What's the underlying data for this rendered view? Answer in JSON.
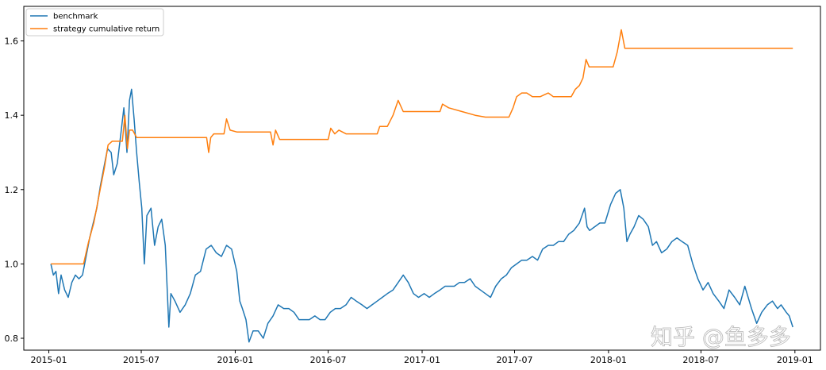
{
  "chart_data": {
    "type": "line",
    "title": "",
    "xlabel": "",
    "ylabel": "",
    "x_ticks": [
      "2015-01",
      "2015-07",
      "2016-01",
      "2016-07",
      "2017-01",
      "2017-07",
      "2018-01",
      "2018-07",
      "2019-01"
    ],
    "y_ticks": [
      "0.8",
      "1.0",
      "1.2",
      "1.4",
      "1.6"
    ],
    "xlim": [
      "2014-11-13",
      "2019-02-20"
    ],
    "ylim": [
      0.768,
      1.693
    ],
    "grid": false,
    "legend_position": "upper-left",
    "series": [
      {
        "name": "benchmark",
        "color": "#1f77b4",
        "points": [
          [
            "2015-01-05",
            1.0
          ],
          [
            "2015-01-10",
            0.97
          ],
          [
            "2015-01-15",
            0.98
          ],
          [
            "2015-01-20",
            0.92
          ],
          [
            "2015-01-25",
            0.97
          ],
          [
            "2015-02-01",
            0.93
          ],
          [
            "2015-02-08",
            0.91
          ],
          [
            "2015-02-15",
            0.95
          ],
          [
            "2015-02-22",
            0.97
          ],
          [
            "2015-03-01",
            0.96
          ],
          [
            "2015-03-08",
            0.97
          ],
          [
            "2015-03-15",
            1.02
          ],
          [
            "2015-03-22",
            1.07
          ],
          [
            "2015-03-29",
            1.11
          ],
          [
            "2015-04-05",
            1.15
          ],
          [
            "2015-04-12",
            1.21
          ],
          [
            "2015-04-19",
            1.26
          ],
          [
            "2015-04-26",
            1.31
          ],
          [
            "2015-05-03",
            1.3
          ],
          [
            "2015-05-08",
            1.24
          ],
          [
            "2015-05-15",
            1.27
          ],
          [
            "2015-05-22",
            1.35
          ],
          [
            "2015-05-28",
            1.42
          ],
          [
            "2015-06-03",
            1.3
          ],
          [
            "2015-06-08",
            1.44
          ],
          [
            "2015-06-12",
            1.47
          ],
          [
            "2015-06-17",
            1.39
          ],
          [
            "2015-06-22",
            1.3
          ],
          [
            "2015-06-27",
            1.22
          ],
          [
            "2015-07-02",
            1.15
          ],
          [
            "2015-07-07",
            1.0
          ],
          [
            "2015-07-12",
            1.13
          ],
          [
            "2015-07-20",
            1.15
          ],
          [
            "2015-07-27",
            1.05
          ],
          [
            "2015-08-03",
            1.1
          ],
          [
            "2015-08-10",
            1.12
          ],
          [
            "2015-08-17",
            1.05
          ],
          [
            "2015-08-24",
            0.83
          ],
          [
            "2015-08-28",
            0.92
          ],
          [
            "2015-09-05",
            0.9
          ],
          [
            "2015-09-15",
            0.87
          ],
          [
            "2015-09-25",
            0.89
          ],
          [
            "2015-10-05",
            0.92
          ],
          [
            "2015-10-15",
            0.97
          ],
          [
            "2015-10-25",
            0.98
          ],
          [
            "2015-11-05",
            1.04
          ],
          [
            "2015-11-15",
            1.05
          ],
          [
            "2015-11-25",
            1.03
          ],
          [
            "2015-12-05",
            1.02
          ],
          [
            "2015-12-15",
            1.05
          ],
          [
            "2015-12-25",
            1.04
          ],
          [
            "2016-01-04",
            0.98
          ],
          [
            "2016-01-10",
            0.9
          ],
          [
            "2016-01-15",
            0.88
          ],
          [
            "2016-01-22",
            0.85
          ],
          [
            "2016-01-28",
            0.79
          ],
          [
            "2016-02-05",
            0.82
          ],
          [
            "2016-02-15",
            0.82
          ],
          [
            "2016-02-25",
            0.8
          ],
          [
            "2016-03-05",
            0.84
          ],
          [
            "2016-03-15",
            0.86
          ],
          [
            "2016-03-25",
            0.89
          ],
          [
            "2016-04-05",
            0.88
          ],
          [
            "2016-04-15",
            0.88
          ],
          [
            "2016-04-25",
            0.87
          ],
          [
            "2016-05-05",
            0.85
          ],
          [
            "2016-05-15",
            0.85
          ],
          [
            "2016-05-25",
            0.85
          ],
          [
            "2016-06-05",
            0.86
          ],
          [
            "2016-06-15",
            0.85
          ],
          [
            "2016-06-25",
            0.85
          ],
          [
            "2016-07-05",
            0.87
          ],
          [
            "2016-07-15",
            0.88
          ],
          [
            "2016-07-25",
            0.88
          ],
          [
            "2016-08-05",
            0.89
          ],
          [
            "2016-08-15",
            0.91
          ],
          [
            "2016-08-25",
            0.9
          ],
          [
            "2016-09-05",
            0.89
          ],
          [
            "2016-09-15",
            0.88
          ],
          [
            "2016-09-25",
            0.89
          ],
          [
            "2016-10-05",
            0.9
          ],
          [
            "2016-10-15",
            0.91
          ],
          [
            "2016-10-25",
            0.92
          ],
          [
            "2016-11-05",
            0.93
          ],
          [
            "2016-11-15",
            0.95
          ],
          [
            "2016-11-25",
            0.97
          ],
          [
            "2016-12-05",
            0.95
          ],
          [
            "2016-12-15",
            0.92
          ],
          [
            "2016-12-25",
            0.91
          ],
          [
            "2017-01-05",
            0.92
          ],
          [
            "2017-01-15",
            0.91
          ],
          [
            "2017-01-25",
            0.92
          ],
          [
            "2017-02-05",
            0.93
          ],
          [
            "2017-02-15",
            0.94
          ],
          [
            "2017-02-25",
            0.94
          ],
          [
            "2017-03-05",
            0.94
          ],
          [
            "2017-03-15",
            0.95
          ],
          [
            "2017-03-25",
            0.95
          ],
          [
            "2017-04-05",
            0.96
          ],
          [
            "2017-04-15",
            0.94
          ],
          [
            "2017-04-25",
            0.93
          ],
          [
            "2017-05-05",
            0.92
          ],
          [
            "2017-05-15",
            0.91
          ],
          [
            "2017-05-25",
            0.94
          ],
          [
            "2017-06-05",
            0.96
          ],
          [
            "2017-06-15",
            0.97
          ],
          [
            "2017-06-25",
            0.99
          ],
          [
            "2017-07-05",
            1.0
          ],
          [
            "2017-07-15",
            1.01
          ],
          [
            "2017-07-25",
            1.01
          ],
          [
            "2017-08-05",
            1.02
          ],
          [
            "2017-08-15",
            1.01
          ],
          [
            "2017-08-25",
            1.04
          ],
          [
            "2017-09-05",
            1.05
          ],
          [
            "2017-09-15",
            1.05
          ],
          [
            "2017-09-25",
            1.06
          ],
          [
            "2017-10-05",
            1.06
          ],
          [
            "2017-10-15",
            1.08
          ],
          [
            "2017-10-25",
            1.09
          ],
          [
            "2017-11-05",
            1.11
          ],
          [
            "2017-11-15",
            1.15
          ],
          [
            "2017-11-20",
            1.1
          ],
          [
            "2017-11-25",
            1.09
          ],
          [
            "2017-12-05",
            1.1
          ],
          [
            "2017-12-15",
            1.11
          ],
          [
            "2017-12-25",
            1.11
          ],
          [
            "2018-01-05",
            1.16
          ],
          [
            "2018-01-15",
            1.19
          ],
          [
            "2018-01-24",
            1.2
          ],
          [
            "2018-01-31",
            1.15
          ],
          [
            "2018-02-06",
            1.06
          ],
          [
            "2018-02-12",
            1.08
          ],
          [
            "2018-02-20",
            1.1
          ],
          [
            "2018-03-01",
            1.13
          ],
          [
            "2018-03-10",
            1.12
          ],
          [
            "2018-03-20",
            1.1
          ],
          [
            "2018-03-28",
            1.05
          ],
          [
            "2018-04-05",
            1.06
          ],
          [
            "2018-04-15",
            1.03
          ],
          [
            "2018-04-25",
            1.04
          ],
          [
            "2018-05-05",
            1.06
          ],
          [
            "2018-05-15",
            1.07
          ],
          [
            "2018-05-25",
            1.06
          ],
          [
            "2018-06-05",
            1.05
          ],
          [
            "2018-06-15",
            1.0
          ],
          [
            "2018-06-25",
            0.96
          ],
          [
            "2018-07-05",
            0.93
          ],
          [
            "2018-07-15",
            0.95
          ],
          [
            "2018-07-25",
            0.92
          ],
          [
            "2018-08-05",
            0.9
          ],
          [
            "2018-08-15",
            0.88
          ],
          [
            "2018-08-25",
            0.93
          ],
          [
            "2018-09-05",
            0.91
          ],
          [
            "2018-09-15",
            0.89
          ],
          [
            "2018-09-25",
            0.94
          ],
          [
            "2018-10-08",
            0.88
          ],
          [
            "2018-10-18",
            0.84
          ],
          [
            "2018-10-28",
            0.87
          ],
          [
            "2018-11-08",
            0.89
          ],
          [
            "2018-11-18",
            0.9
          ],
          [
            "2018-11-28",
            0.88
          ],
          [
            "2018-12-05",
            0.89
          ],
          [
            "2018-12-15",
            0.87
          ],
          [
            "2018-12-21",
            0.86
          ],
          [
            "2018-12-28",
            0.83
          ]
        ]
      },
      {
        "name": "strategy cumulative return",
        "color": "#ff7f0e",
        "points": [
          [
            "2015-01-05",
            1.0
          ],
          [
            "2015-03-10",
            1.0
          ],
          [
            "2015-03-20",
            1.06
          ],
          [
            "2015-03-30",
            1.11
          ],
          [
            "2015-04-10",
            1.19
          ],
          [
            "2015-04-20",
            1.26
          ],
          [
            "2015-04-27",
            1.32
          ],
          [
            "2015-05-05",
            1.33
          ],
          [
            "2015-05-25",
            1.33
          ],
          [
            "2015-05-30",
            1.4
          ],
          [
            "2015-06-04",
            1.31
          ],
          [
            "2015-06-08",
            1.36
          ],
          [
            "2015-06-14",
            1.36
          ],
          [
            "2015-06-22",
            1.34
          ],
          [
            "2015-11-06",
            1.34
          ],
          [
            "2015-11-10",
            1.3
          ],
          [
            "2015-11-14",
            1.34
          ],
          [
            "2015-11-20",
            1.35
          ],
          [
            "2015-12-10",
            1.35
          ],
          [
            "2015-12-15",
            1.39
          ],
          [
            "2015-12-22",
            1.36
          ],
          [
            "2016-01-04",
            1.355
          ],
          [
            "2016-03-10",
            1.355
          ],
          [
            "2016-03-15",
            1.32
          ],
          [
            "2016-03-20",
            1.36
          ],
          [
            "2016-03-28",
            1.335
          ],
          [
            "2016-07-01",
            1.335
          ],
          [
            "2016-07-06",
            1.365
          ],
          [
            "2016-07-14",
            1.35
          ],
          [
            "2016-07-22",
            1.36
          ],
          [
            "2016-08-05",
            1.35
          ],
          [
            "2016-10-05",
            1.35
          ],
          [
            "2016-10-10",
            1.37
          ],
          [
            "2016-10-25",
            1.37
          ],
          [
            "2016-11-05",
            1.4
          ],
          [
            "2016-11-15",
            1.44
          ],
          [
            "2016-11-25",
            1.41
          ],
          [
            "2017-02-05",
            1.41
          ],
          [
            "2017-02-10",
            1.43
          ],
          [
            "2017-02-22",
            1.42
          ],
          [
            "2017-03-20",
            1.41
          ],
          [
            "2017-04-15",
            1.4
          ],
          [
            "2017-05-05",
            1.395
          ],
          [
            "2017-06-20",
            1.395
          ],
          [
            "2017-06-28",
            1.42
          ],
          [
            "2017-07-05",
            1.45
          ],
          [
            "2017-07-15",
            1.46
          ],
          [
            "2017-07-25",
            1.46
          ],
          [
            "2017-08-05",
            1.45
          ],
          [
            "2017-08-20",
            1.45
          ],
          [
            "2017-09-05",
            1.46
          ],
          [
            "2017-09-15",
            1.45
          ],
          [
            "2017-10-20",
            1.45
          ],
          [
            "2017-10-28",
            1.47
          ],
          [
            "2017-11-05",
            1.48
          ],
          [
            "2017-11-12",
            1.5
          ],
          [
            "2017-11-18",
            1.55
          ],
          [
            "2017-11-24",
            1.53
          ],
          [
            "2018-01-10",
            1.53
          ],
          [
            "2018-01-18",
            1.57
          ],
          [
            "2018-01-26",
            1.63
          ],
          [
            "2018-02-02",
            1.58
          ],
          [
            "2018-12-28",
            1.58
          ]
        ]
      }
    ]
  },
  "watermark": "知乎 @鱼多多"
}
